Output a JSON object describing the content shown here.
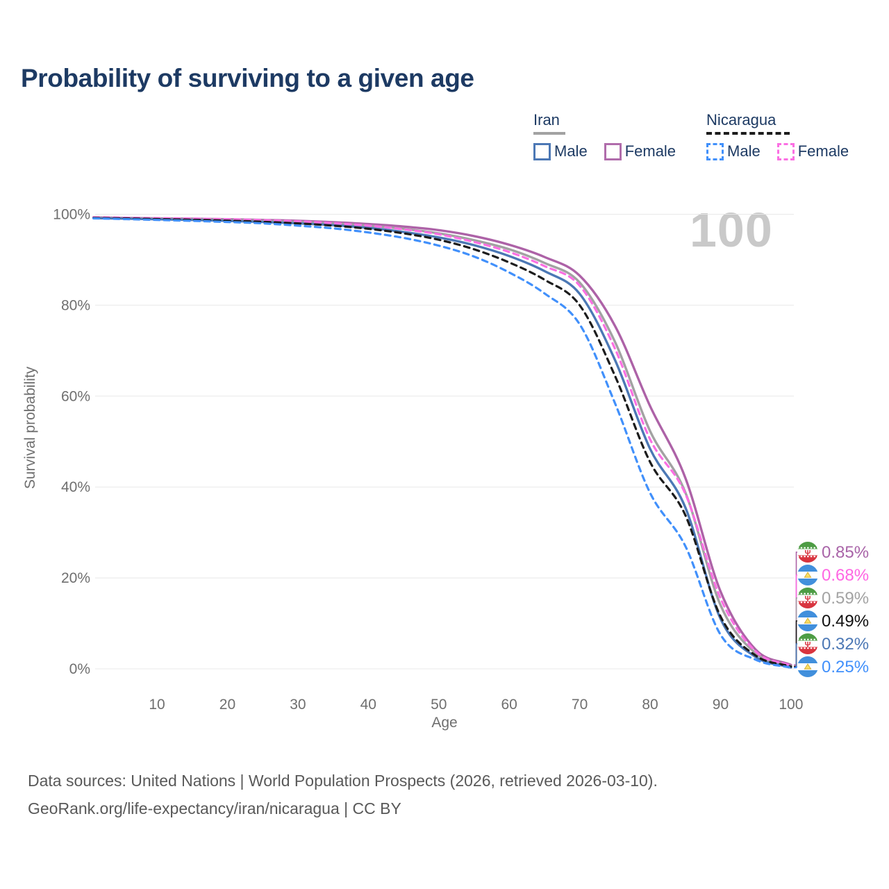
{
  "title": "Probability of surviving to a given age",
  "watermark": "100",
  "legend": {
    "groups": [
      {
        "country": "Iran",
        "line_style": "solid",
        "line_color": "#a2a2a2",
        "underline_width": 46,
        "items": [
          {
            "label": "Male",
            "color": "#4c78b5",
            "style": "solid"
          },
          {
            "label": "Female",
            "color": "#b06cab",
            "style": "solid"
          }
        ]
      },
      {
        "country": "Nicaragua",
        "line_style": "dashed",
        "line_color": "#1c1c1c",
        "underline_width": 120,
        "items": [
          {
            "label": "Male",
            "color": "#4190fb",
            "style": "dashed"
          },
          {
            "label": "Female",
            "color": "#fb6fe3",
            "style": "dashed"
          }
        ]
      }
    ]
  },
  "chart_data": {
    "type": "line",
    "title": "Probability of surviving to a given age",
    "xlabel": "Age",
    "ylabel": "Survival probability",
    "xlim": [
      1,
      100
    ],
    "ylim": [
      0,
      100
    ],
    "grid": true,
    "x_ticks": [
      10,
      20,
      30,
      40,
      50,
      60,
      70,
      80,
      90,
      100
    ],
    "y_ticks": [
      100,
      80,
      60,
      40,
      20,
      0
    ],
    "y_tick_suffix": "%",
    "ages": [
      1,
      5,
      10,
      15,
      20,
      25,
      30,
      35,
      40,
      45,
      50,
      55,
      60,
      65,
      70,
      75,
      80,
      85,
      90,
      95,
      100
    ],
    "series": [
      {
        "id": "iran-female",
        "country": "Iran",
        "sex": "Female",
        "color": "#ad62a7",
        "dashed": false,
        "flag": "iran",
        "end_label": "0.85%",
        "end_value": 0.85,
        "label_color": "#a964a8",
        "values": [
          99.3,
          99.2,
          99.1,
          99.0,
          98.9,
          98.75,
          98.55,
          98.25,
          97.85,
          97.3,
          96.5,
          95.2,
          93.3,
          90.6,
          86.5,
          75.5,
          57.8,
          42.0,
          17.0,
          4.2,
          0.85
        ]
      },
      {
        "id": "nicaragua-female",
        "country": "Nicaragua",
        "sex": "Female",
        "color": "#fb6fe3",
        "dashed": true,
        "flag": "nicaragua",
        "end_label": "0.68%",
        "end_value": 0.68,
        "label_color": "#ff66e3",
        "values": [
          99.35,
          99.25,
          99.15,
          99.05,
          98.9,
          98.7,
          98.45,
          98.05,
          97.5,
          96.7,
          95.6,
          93.9,
          91.7,
          88.6,
          84.3,
          70.5,
          50.5,
          38.5,
          15.5,
          3.8,
          0.68
        ]
      },
      {
        "id": "iran-all",
        "country": "Iran",
        "sex": "All",
        "color": "#a2a2a2",
        "dashed": false,
        "flag": "iran",
        "end_label": "0.59%",
        "end_value": 0.59,
        "label_color": "#a3a3a3",
        "values": [
          99.25,
          99.15,
          99.05,
          98.95,
          98.8,
          98.6,
          98.35,
          98.0,
          97.5,
          96.8,
          95.8,
          94.3,
          92.3,
          89.3,
          85.0,
          72.0,
          52.3,
          38.8,
          14.0,
          3.4,
          0.59
        ]
      },
      {
        "id": "nicaragua-all",
        "country": "Nicaragua",
        "sex": "All",
        "color": "#1c1c1c",
        "dashed": true,
        "flag": "nicaragua",
        "end_label": "0.49%",
        "end_value": 0.49,
        "label_color": "#111111",
        "values": [
          99.2,
          99.1,
          98.95,
          98.8,
          98.6,
          98.35,
          98.0,
          97.5,
          96.8,
          95.8,
          94.4,
          92.3,
          89.4,
          85.6,
          80.0,
          64.5,
          45.5,
          33.8,
          11.5,
          2.9,
          0.49
        ]
      },
      {
        "id": "iran-male",
        "country": "Iran",
        "sex": "Male",
        "color": "#4c78b5",
        "dashed": false,
        "flag": "iran",
        "end_label": "0.32%",
        "end_value": 0.32,
        "label_color": "#4c78b5",
        "values": [
          99.15,
          99.05,
          98.9,
          98.75,
          98.55,
          98.3,
          98.0,
          97.6,
          97.0,
          96.1,
          94.9,
          93.2,
          90.8,
          87.5,
          82.5,
          68.0,
          48.4,
          35.5,
          11.0,
          2.6,
          0.32
        ]
      },
      {
        "id": "nicaragua-male",
        "country": "Nicaragua",
        "sex": "Male",
        "color": "#4190fb",
        "dashed": true,
        "flag": "nicaragua",
        "end_label": "0.25%",
        "end_value": 0.25,
        "label_color": "#4190fb",
        "values": [
          99.1,
          98.95,
          98.75,
          98.55,
          98.3,
          98.0,
          97.5,
          96.9,
          96.0,
          94.8,
          93.1,
          90.7,
          87.2,
          82.6,
          75.8,
          58.5,
          38.7,
          27.0,
          7.5,
          2.0,
          0.25
        ]
      }
    ],
    "legend_position": "top-right",
    "colors": {
      "grid": "#e8e8e8",
      "tick_label": "#6f6f6f",
      "title": "#1d3a63",
      "watermark": "#c9c9c9",
      "footer": "#595959",
      "iran_flag_green": "#4d9c44",
      "iran_flag_red": "#d8343f",
      "nicaragua_flag_blue": "#418fdc",
      "nicaragua_flag_gold": "#fbdf63"
    }
  },
  "footer": {
    "line1": "Data sources: United Nations | World Population Prospects (2026, retrieved 2026-03-10).",
    "line2": "GeoRank.org/life-expectancy/iran/nicaragua | CC BY"
  }
}
